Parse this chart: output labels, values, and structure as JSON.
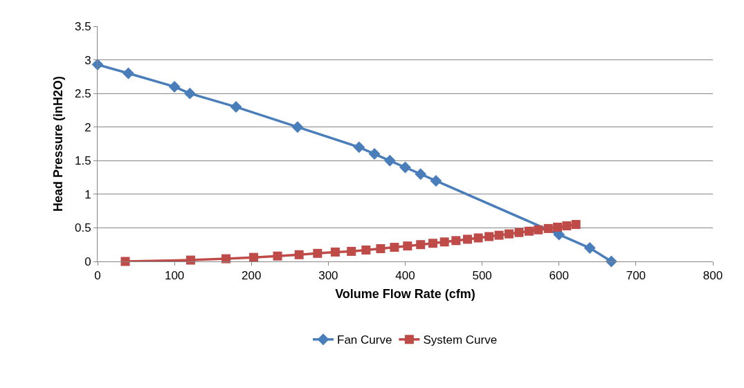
{
  "chart_data": {
    "type": "line",
    "xlabel": "Volume Flow Rate (cfm)",
    "ylabel": "Head Pressure (inH2O)",
    "xlim": [
      0,
      800
    ],
    "xticks": [
      0,
      100,
      200,
      300,
      400,
      500,
      600,
      700,
      800
    ],
    "ylim": [
      0,
      3.5
    ],
    "yticks": [
      0,
      0.5,
      1,
      1.5,
      2,
      2.5,
      3,
      3.5
    ],
    "grid": "y",
    "legend": "bottom",
    "line_style": "solid",
    "series": [
      {
        "name": "Fan Curve",
        "color": "#4a7ebb",
        "marker": "diamond",
        "x": [
          0,
          40,
          100,
          120,
          180,
          260,
          340,
          360,
          380,
          400,
          420,
          440,
          600,
          640,
          668
        ],
        "values": [
          2.93,
          2.8,
          2.6,
          2.5,
          2.3,
          2.0,
          1.7,
          1.6,
          1.5,
          1.4,
          1.3,
          1.2,
          0.4,
          0.2,
          0
        ]
      },
      {
        "name": "System Curve",
        "color": "#be4b48",
        "marker": "square",
        "x": [
          36,
          121,
          167,
          203,
          234,
          262,
          286,
          309,
          330,
          349,
          368,
          386,
          403,
          420,
          436,
          451,
          466,
          481,
          495,
          509,
          522,
          535,
          548,
          561,
          573,
          586,
          598,
          610,
          622
        ],
        "values": [
          0,
          0.02,
          0.04,
          0.06,
          0.08,
          0.1,
          0.12,
          0.14,
          0.15,
          0.17,
          0.19,
          0.21,
          0.23,
          0.25,
          0.27,
          0.29,
          0.31,
          0.33,
          0.35,
          0.37,
          0.39,
          0.41,
          0.43,
          0.45,
          0.47,
          0.49,
          0.51,
          0.53,
          0.55
        ]
      }
    ]
  }
}
